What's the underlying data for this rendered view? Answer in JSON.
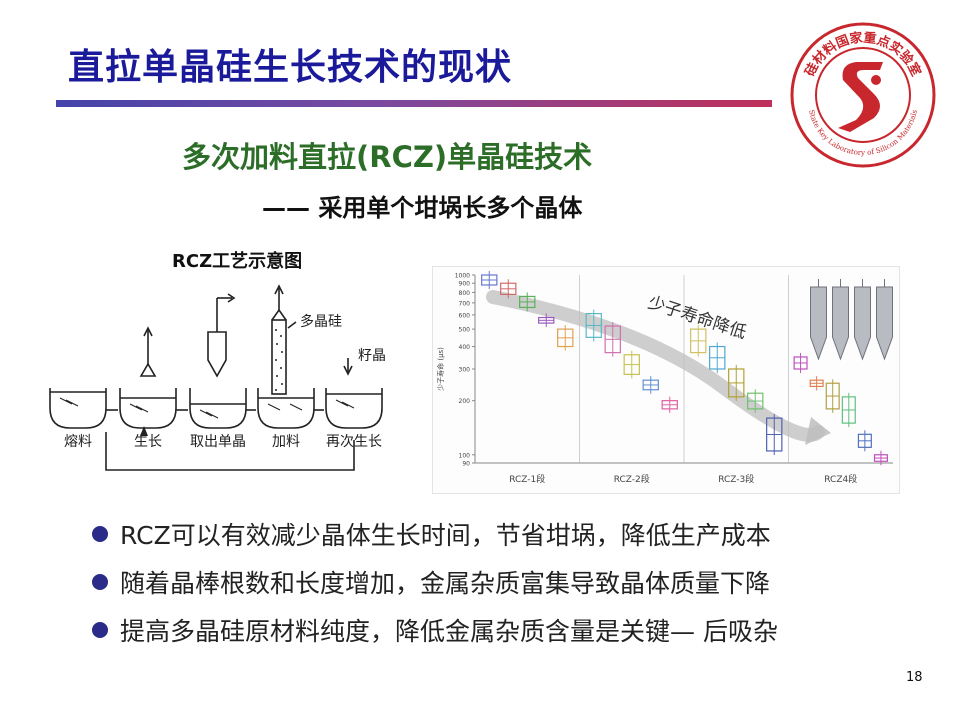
{
  "slide": {
    "title": "直拉单晶硅生长技术的现状",
    "subtitle": "多次加料直拉(RCZ)单晶硅技术",
    "subline": "—— 采用单个坩埚长多个晶体",
    "diagram_title": "RCZ工艺示意图",
    "page_number": "18"
  },
  "seal": {
    "cn_text": "硅材料国家重点实验室",
    "en_text": "State Key Laboratory of Silicon Materials",
    "colors": {
      "ring": "#c8272d",
      "fill": "#ffffff"
    }
  },
  "diagram": {
    "stages": [
      "熔料",
      "生长",
      "取出单晶",
      "加料",
      "再次生长"
    ],
    "callouts": {
      "poly": "多晶硅",
      "seed": "籽晶"
    }
  },
  "chart_data": {
    "type": "box",
    "ylabel": "少子寿命 (μs)",
    "yscale": "log",
    "ylim": [
      90,
      1000
    ],
    "yticks": [
      90,
      100,
      200,
      300,
      400,
      500,
      600,
      700,
      800,
      900,
      1000
    ],
    "categories": [
      "RCZ-1段",
      "RCZ-2段",
      "RCZ-3段",
      "RCZ4段"
    ],
    "annotation": "少子寿命降低",
    "boxes": [
      {
        "group": 0,
        "q1": 880,
        "q3": 1000,
        "color": "#6a78d0"
      },
      {
        "group": 0,
        "q1": 780,
        "q3": 900,
        "color": "#d06a6a"
      },
      {
        "group": 0,
        "q1": 660,
        "q3": 760,
        "color": "#5ab05a"
      },
      {
        "group": 0,
        "q1": 540,
        "q3": 580,
        "color": "#9a5ac0"
      },
      {
        "group": 0,
        "q1": 400,
        "q3": 500,
        "color": "#e0a050"
      },
      {
        "group": 1,
        "q1": 450,
        "q3": 610,
        "color": "#58b8c8"
      },
      {
        "group": 1,
        "q1": 370,
        "q3": 520,
        "color": "#d070b0"
      },
      {
        "group": 1,
        "q1": 280,
        "q3": 360,
        "color": "#c8c050"
      },
      {
        "group": 1,
        "q1": 230,
        "q3": 260,
        "color": "#6090d0"
      },
      {
        "group": 1,
        "q1": 180,
        "q3": 200,
        "color": "#e060a0"
      },
      {
        "group": 2,
        "q1": 370,
        "q3": 500,
        "color": "#d0c060"
      },
      {
        "group": 2,
        "q1": 300,
        "q3": 400,
        "color": "#50a8d0"
      },
      {
        "group": 2,
        "q1": 210,
        "q3": 300,
        "color": "#b0a030"
      },
      {
        "group": 2,
        "q1": 180,
        "q3": 220,
        "color": "#70c070"
      },
      {
        "group": 2,
        "q1": 105,
        "q3": 160,
        "color": "#5060b0"
      },
      {
        "group": 3,
        "q1": 300,
        "q3": 350,
        "color": "#c050c0"
      },
      {
        "group": 3,
        "q1": 240,
        "q3": 260,
        "color": "#e08050"
      },
      {
        "group": 3,
        "q1": 180,
        "q3": 250,
        "color": "#b0a040"
      },
      {
        "group": 3,
        "q1": 150,
        "q3": 210,
        "color": "#60c080"
      },
      {
        "group": 3,
        "q1": 110,
        "q3": 130,
        "color": "#5070c0"
      },
      {
        "group": 3,
        "q1": 92,
        "q3": 100,
        "color": "#c050c0"
      }
    ]
  },
  "bullets": [
    "RCZ可以有效减少晶体生长时间，节省坩埚，降低生产成本",
    "随着晶棒根数和长度增加，金属杂质富集导致晶体质量下降",
    "提高多晶硅原材料纯度，降低金属杂质含量是关键— 后吸杂"
  ]
}
